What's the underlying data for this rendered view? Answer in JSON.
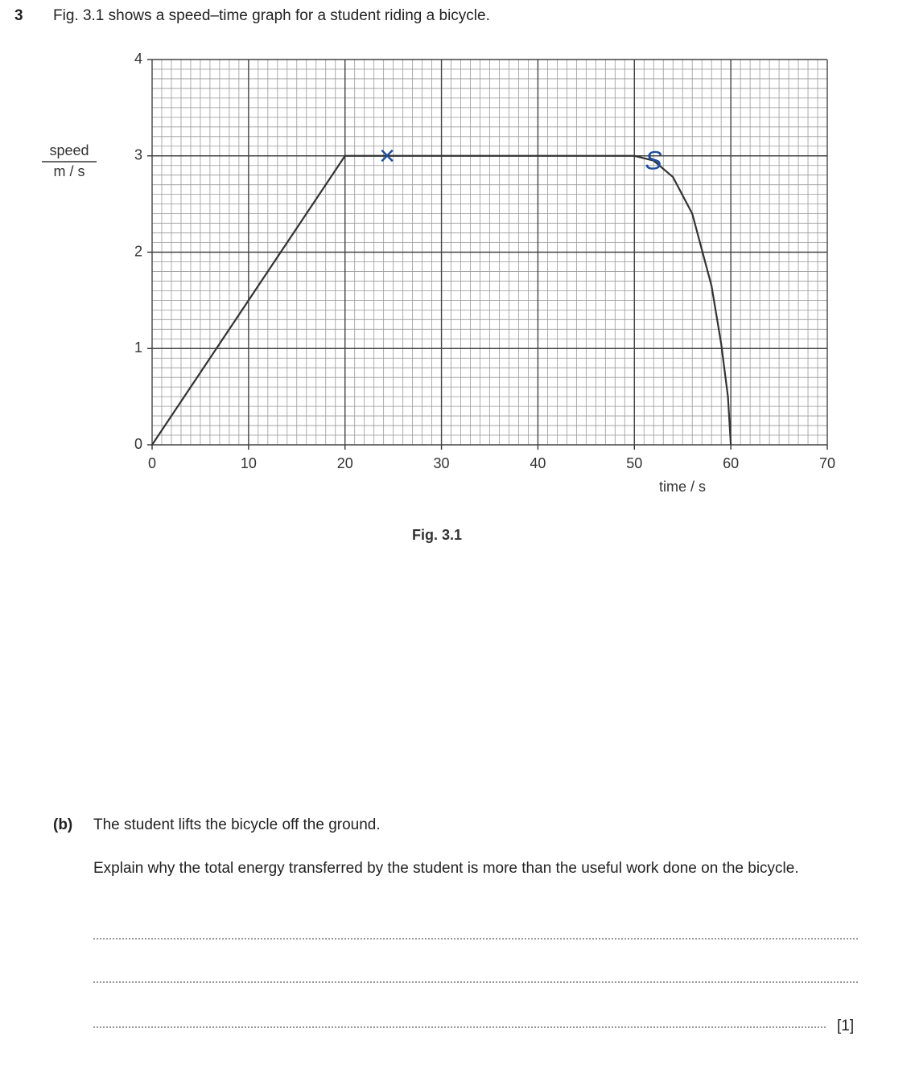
{
  "question_number": "3",
  "intro": "Fig. 3.1 shows a speed–time graph for a student riding a bicycle.",
  "chart_data": {
    "type": "line",
    "ylabel_top": "speed",
    "ylabel_bottom": "m / s",
    "xlabel": "time / s",
    "caption": "Fig. 3.1",
    "x": [
      0,
      20,
      50,
      52,
      54,
      56,
      58,
      59,
      59.7,
      60
    ],
    "values": [
      0,
      3,
      3,
      2.95,
      2.78,
      2.4,
      1.65,
      1.05,
      0.5,
      0
    ],
    "color": "#333333",
    "xlim": [
      0,
      70
    ],
    "xticks": [
      0,
      10,
      20,
      30,
      40,
      50,
      60,
      70
    ],
    "ylim": [
      0,
      4
    ],
    "yticks": [
      0,
      1,
      2,
      3,
      4
    ],
    "grid": true,
    "annotations": [
      "×",
      "S"
    ]
  },
  "part_b": {
    "label": "(b)",
    "line1": "The student lifts the bicycle off the ground.",
    "line2": "Explain why the total energy transferred by the student is more than the useful work done on the bicycle.",
    "marks": "[1]"
  }
}
